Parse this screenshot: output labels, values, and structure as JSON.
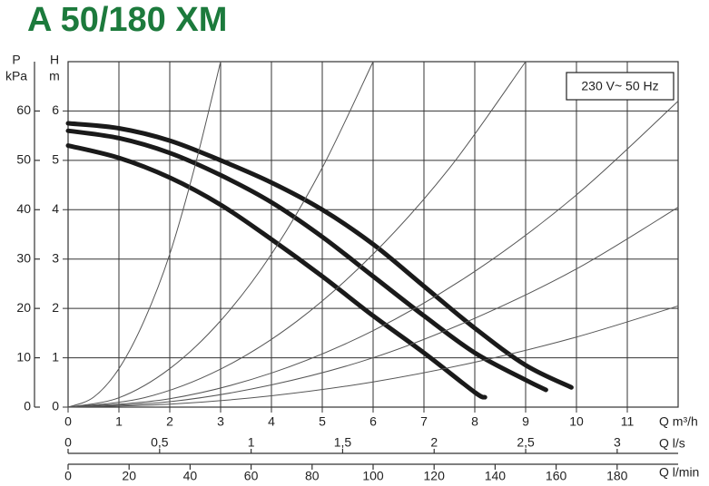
{
  "chart_data": {
    "type": "line",
    "title": "A 50/180 XM",
    "annotation": "230 V~ 50 Hz",
    "x_label": "Q m³/h",
    "x2_label": "Q l/s",
    "x3_label": "Q l/min",
    "y_label": [
      "H",
      "m"
    ],
    "y2_label": [
      "P",
      "kPa"
    ],
    "xlim": [
      0,
      12
    ],
    "xticks": [
      0,
      1,
      2,
      3,
      4,
      5,
      6,
      7,
      8,
      9,
      10,
      11
    ],
    "x2lim": [
      0,
      3.333
    ],
    "x2ticks": [
      0,
      {
        "value": 0.5,
        "label": "0,5"
      },
      1,
      {
        "value": 1.5,
        "label": "1,5"
      },
      2,
      {
        "value": 2.5,
        "label": "2,5"
      },
      3
    ],
    "x3lim": [
      0,
      200
    ],
    "x3ticks": [
      0,
      20,
      40,
      60,
      80,
      100,
      120,
      140,
      160,
      180
    ],
    "ylim": [
      0,
      7
    ],
    "yticks": [
      0,
      1,
      2,
      3,
      4,
      5,
      6
    ],
    "y2lim": [
      0,
      70
    ],
    "y2ticks": [
      0,
      10,
      20,
      30,
      40,
      50,
      60
    ],
    "grid": true,
    "series": [
      {
        "color": "#1a1a1a",
        "line_width": 5,
        "x": [
          0,
          1,
          2,
          3,
          4,
          5,
          6,
          7,
          8,
          9,
          9.9
        ],
        "values": [
          5.75,
          5.65,
          5.4,
          5.0,
          4.55,
          4.0,
          3.3,
          2.45,
          1.6,
          0.85,
          0.4
        ]
      },
      {
        "color": "#1a1a1a",
        "line_width": 5,
        "x": [
          0,
          1,
          2,
          3,
          4,
          5,
          6,
          7,
          8,
          9,
          9.4
        ],
        "values": [
          5.6,
          5.45,
          5.15,
          4.7,
          4.15,
          3.45,
          2.65,
          1.85,
          1.1,
          0.55,
          0.35
        ]
      },
      {
        "color": "#1a1a1a",
        "line_width": 5,
        "x": [
          0,
          1,
          2,
          3,
          4,
          5,
          6,
          7,
          8,
          8.2
        ],
        "values": [
          5.3,
          5.05,
          4.65,
          4.1,
          3.4,
          2.65,
          1.85,
          1.1,
          0.3,
          0.2
        ]
      },
      {
        "color": "#555555",
        "line_width": 1,
        "x": [
          0,
          0.5,
          1,
          1.5,
          2,
          2.5,
          3
        ],
        "values": [
          0,
          0.2,
          0.78,
          1.76,
          3.1,
          4.9,
          7.0
        ]
      },
      {
        "color": "#555555",
        "line_width": 1,
        "x": [
          0,
          1,
          2,
          3,
          4,
          5,
          6
        ],
        "values": [
          0,
          0.19,
          0.78,
          1.75,
          3.1,
          4.85,
          7.0
        ]
      },
      {
        "color": "#555555",
        "line_width": 1,
        "x": [
          0,
          1.5,
          3,
          4.5,
          6,
          7.5,
          9
        ],
        "values": [
          0,
          0.19,
          0.77,
          1.74,
          3.1,
          4.84,
          7.0
        ]
      },
      {
        "color": "#555555",
        "line_width": 1,
        "x": [
          0,
          2,
          4,
          6,
          8,
          10,
          12
        ],
        "values": [
          0,
          0.17,
          0.69,
          1.55,
          2.75,
          4.3,
          6.2
        ]
      },
      {
        "color": "#555555",
        "line_width": 1,
        "x": [
          0,
          2,
          4,
          6,
          8,
          10,
          12
        ],
        "values": [
          0,
          0.11,
          0.45,
          1.0,
          1.8,
          2.8,
          4.05
        ]
      },
      {
        "color": "#555555",
        "line_width": 1,
        "x": [
          0,
          2,
          4,
          6,
          8,
          10,
          12
        ],
        "values": [
          0,
          0.06,
          0.23,
          0.51,
          0.91,
          1.42,
          2.05
        ]
      }
    ]
  }
}
